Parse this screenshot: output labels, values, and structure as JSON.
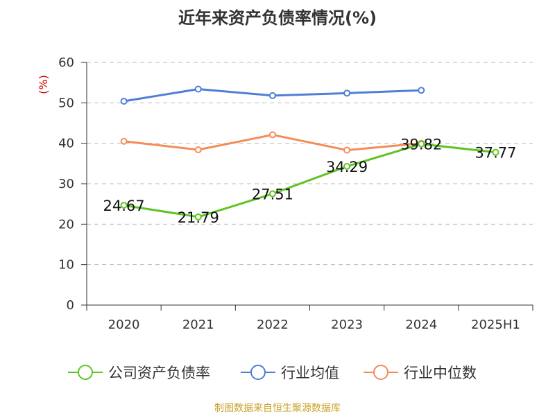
{
  "title": "近年来资产负债率情况(%)",
  "source": "制图数据来自恒生聚源数据库",
  "chart_data": {
    "type": "line",
    "title": "近年来资产负债率情况(%)",
    "ylabel": "(%)",
    "xlabel": "",
    "categories": [
      "2020",
      "2021",
      "2022",
      "2023",
      "2024",
      "2025H1"
    ],
    "ylim": [
      0,
      60
    ],
    "yticks": [
      0,
      10,
      20,
      30,
      40,
      50,
      60
    ],
    "grid": true,
    "legend_position": "bottom",
    "series": [
      {
        "name": "公司资产负债率",
        "values": [
          24.67,
          21.79,
          27.51,
          34.29,
          39.82,
          37.77
        ],
        "labels": [
          "24.67",
          "21.79",
          "27.51",
          "34.29",
          "39.82",
          "37.77"
        ],
        "color": "#5ec424"
      },
      {
        "name": "行业均值",
        "values": [
          50.4,
          53.4,
          51.8,
          52.4,
          53.1,
          null
        ],
        "color": "#4e7fd6"
      },
      {
        "name": "行业中位数",
        "values": [
          40.5,
          38.4,
          42.1,
          38.3,
          40.0,
          null
        ],
        "color": "#f58b57"
      }
    ]
  }
}
